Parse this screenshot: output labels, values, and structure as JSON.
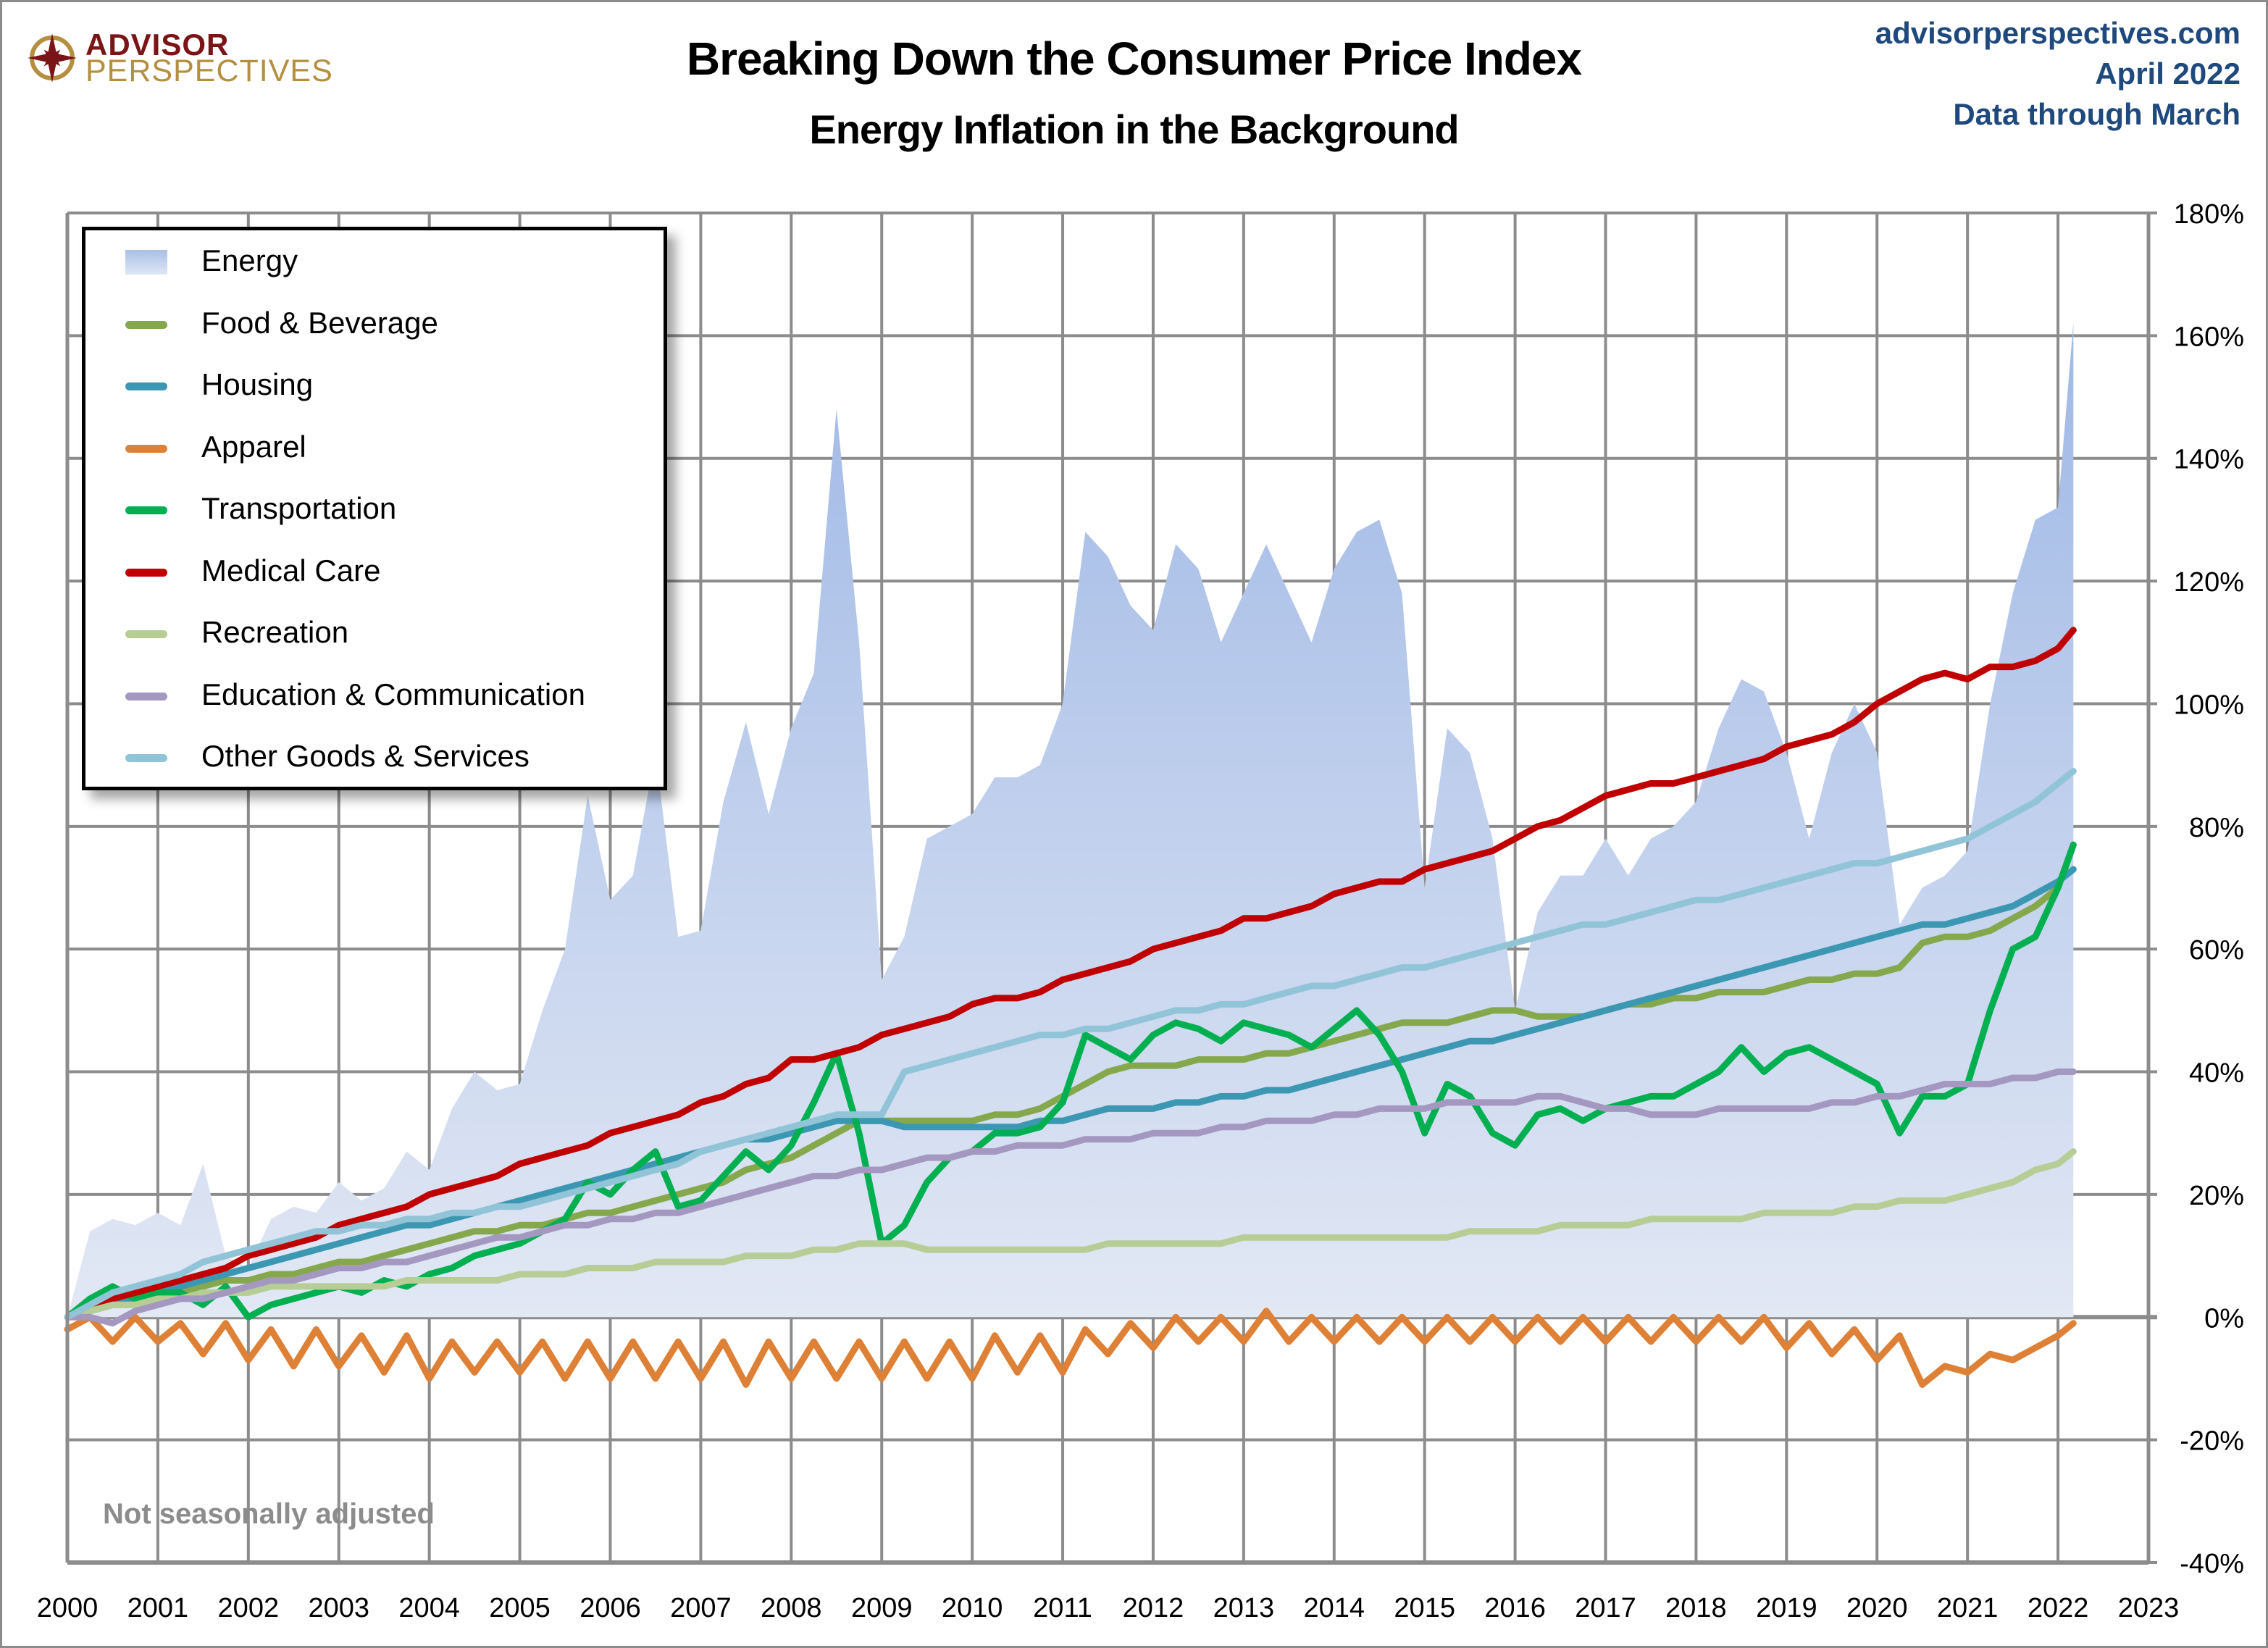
{
  "header": {
    "title": "Breaking Down the Consumer Price Index",
    "subtitle": "Energy Inflation in the Background",
    "source_lines": [
      "advisorperspectives.com",
      "April 2022",
      "Data through March"
    ],
    "logo": {
      "line1": "ADVISOR",
      "line2": "PERSPECTIVES",
      "icon": "compass-star-icon"
    }
  },
  "note": "Not seasonally adjusted",
  "colors": {
    "energy": "#b4c6e8",
    "food": "#86a84c",
    "housing": "#3c98b2",
    "apparel": "#de8137",
    "transportation": "#00b050",
    "medical": "#c00000",
    "recreation": "#b6ce96",
    "education": "#a497c0",
    "other": "#92c4d8",
    "grid": "#8c8c8c",
    "source_text": "#1f497d",
    "brand_red": "#7a1416",
    "brand_gold": "#b38f3f"
  },
  "chart_data": {
    "type": "line",
    "title": "Breaking Down the Consumer Price Index",
    "subtitle": "Energy Inflation in the Background",
    "xlabel": "",
    "ylabel": "",
    "x_unit": "year",
    "xlim": [
      2000,
      2023
    ],
    "ylim": [
      -40,
      180
    ],
    "x_ticks": [
      "2000",
      "2001",
      "2002",
      "2003",
      "2004",
      "2005",
      "2006",
      "2007",
      "2008",
      "2009",
      "2010",
      "2011",
      "2012",
      "2013",
      "2014",
      "2015",
      "2016",
      "2017",
      "2018",
      "2019",
      "2020",
      "2021",
      "2022",
      "2023"
    ],
    "y_ticks": [
      "180%",
      "160%",
      "140%",
      "120%",
      "100%",
      "80%",
      "60%",
      "40%",
      "20%",
      "0%",
      "-20%",
      "-40%"
    ],
    "y_tick_values": [
      180,
      160,
      140,
      120,
      100,
      80,
      60,
      40,
      20,
      0,
      -20,
      -40
    ],
    "y_axis_side": "right",
    "grid": true,
    "legend_position": "top-left",
    "x": [
      2000.0,
      2000.25,
      2000.5,
      2000.75,
      2001.0,
      2001.25,
      2001.5,
      2001.75,
      2002.0,
      2002.25,
      2002.5,
      2002.75,
      2003.0,
      2003.25,
      2003.5,
      2003.75,
      2004.0,
      2004.25,
      2004.5,
      2004.75,
      2005.0,
      2005.25,
      2005.5,
      2005.75,
      2006.0,
      2006.25,
      2006.5,
      2006.75,
      2007.0,
      2007.25,
      2007.5,
      2007.75,
      2008.0,
      2008.25,
      2008.5,
      2008.75,
      2009.0,
      2009.25,
      2009.5,
      2009.75,
      2010.0,
      2010.25,
      2010.5,
      2010.75,
      2011.0,
      2011.25,
      2011.5,
      2011.75,
      2012.0,
      2012.25,
      2012.5,
      2012.75,
      2013.0,
      2013.25,
      2013.5,
      2013.75,
      2014.0,
      2014.25,
      2014.5,
      2014.75,
      2015.0,
      2015.25,
      2015.5,
      2015.75,
      2016.0,
      2016.25,
      2016.5,
      2016.75,
      2017.0,
      2017.25,
      2017.5,
      2017.75,
      2018.0,
      2018.25,
      2018.5,
      2018.75,
      2019.0,
      2019.25,
      2019.5,
      2019.75,
      2020.0,
      2020.25,
      2020.5,
      2020.75,
      2021.0,
      2021.25,
      2021.5,
      2021.75,
      2022.0,
      2022.17
    ],
    "series": [
      {
        "name": "Energy",
        "type": "area",
        "color": "#b4c6e8",
        "values": [
          0,
          14,
          16,
          15,
          17,
          15,
          25,
          10,
          8,
          16,
          18,
          17,
          22,
          19,
          21,
          27,
          24,
          34,
          40,
          37,
          38,
          50,
          60,
          85,
          68,
          72,
          92,
          62,
          63,
          84,
          97,
          82,
          96,
          105,
          148,
          110,
          55,
          62,
          78,
          80,
          82,
          88,
          88,
          90,
          100,
          128,
          124,
          116,
          112,
          126,
          122,
          110,
          118,
          126,
          118,
          110,
          122,
          128,
          130,
          118,
          70,
          96,
          92,
          78,
          50,
          66,
          72,
          72,
          78,
          72,
          78,
          80,
          84,
          96,
          104,
          102,
          92,
          78,
          92,
          100,
          92,
          64,
          70,
          72,
          76,
          100,
          118,
          130,
          132,
          162
        ]
      },
      {
        "name": "Food & Beverage",
        "color": "#86a84c",
        "values": [
          0,
          1,
          2,
          2,
          3,
          4,
          5,
          6,
          6,
          7,
          7,
          8,
          9,
          9,
          10,
          11,
          12,
          13,
          14,
          14,
          15,
          15,
          16,
          17,
          17,
          18,
          19,
          20,
          21,
          22,
          24,
          25,
          26,
          28,
          30,
          32,
          32,
          32,
          32,
          32,
          32,
          33,
          33,
          34,
          36,
          38,
          40,
          41,
          41,
          41,
          42,
          42,
          42,
          43,
          43,
          44,
          45,
          46,
          47,
          48,
          48,
          48,
          49,
          50,
          50,
          49,
          49,
          49,
          50,
          51,
          51,
          52,
          52,
          53,
          53,
          53,
          54,
          55,
          55,
          56,
          56,
          57,
          61,
          62,
          62,
          63,
          65,
          67,
          70,
          77
        ]
      },
      {
        "name": "Housing",
        "color": "#3c98b2",
        "values": [
          0,
          1,
          2,
          3,
          4,
          5,
          6,
          7,
          8,
          9,
          10,
          11,
          12,
          13,
          14,
          15,
          15,
          16,
          17,
          18,
          19,
          20,
          21,
          22,
          23,
          24,
          25,
          26,
          27,
          28,
          29,
          29,
          30,
          31,
          32,
          32,
          32,
          31,
          31,
          31,
          31,
          31,
          31,
          32,
          32,
          33,
          34,
          34,
          34,
          35,
          35,
          36,
          36,
          37,
          37,
          38,
          39,
          40,
          41,
          42,
          43,
          44,
          45,
          45,
          46,
          47,
          48,
          49,
          50,
          51,
          52,
          53,
          54,
          55,
          56,
          57,
          58,
          59,
          60,
          61,
          62,
          63,
          64,
          64,
          65,
          66,
          67,
          69,
          71,
          73
        ]
      },
      {
        "name": "Apparel",
        "color": "#de8137",
        "values": [
          -2,
          0,
          -4,
          0,
          -4,
          -1,
          -6,
          -1,
          -7,
          -2,
          -8,
          -2,
          -8,
          -3,
          -9,
          -3,
          -10,
          -4,
          -9,
          -4,
          -9,
          -4,
          -10,
          -4,
          -10,
          -4,
          -10,
          -4,
          -10,
          -4,
          -11,
          -4,
          -10,
          -4,
          -10,
          -4,
          -10,
          -4,
          -10,
          -4,
          -10,
          -3,
          -9,
          -3,
          -9,
          -2,
          -6,
          -1,
          -5,
          0,
          -4,
          0,
          -4,
          1,
          -4,
          0,
          -4,
          0,
          -4,
          0,
          -4,
          0,
          -4,
          0,
          -4,
          0,
          -4,
          0,
          -4,
          0,
          -4,
          0,
          -4,
          0,
          -4,
          0,
          -5,
          -1,
          -6,
          -2,
          -7,
          -3,
          -11,
          -8,
          -9,
          -6,
          -7,
          -5,
          -3,
          -1
        ]
      },
      {
        "name": "Transportation",
        "color": "#00b050",
        "values": [
          0,
          3,
          5,
          3,
          4,
          4,
          2,
          5,
          0,
          2,
          3,
          4,
          5,
          4,
          6,
          5,
          7,
          8,
          10,
          11,
          12,
          14,
          16,
          22,
          20,
          24,
          27,
          18,
          19,
          23,
          27,
          24,
          28,
          35,
          43,
          30,
          12,
          15,
          22,
          26,
          27,
          30,
          30,
          31,
          35,
          46,
          44,
          42,
          46,
          48,
          47,
          45,
          48,
          47,
          46,
          44,
          47,
          50,
          46,
          40,
          30,
          38,
          36,
          30,
          28,
          33,
          34,
          32,
          34,
          35,
          36,
          36,
          38,
          40,
          44,
          40,
          43,
          44,
          42,
          40,
          38,
          30,
          36,
          36,
          38,
          50,
          60,
          62,
          70,
          77
        ]
      },
      {
        "name": "Medical Care",
        "color": "#c00000",
        "values": [
          0,
          2,
          3,
          4,
          5,
          6,
          7,
          8,
          10,
          11,
          12,
          13,
          15,
          16,
          17,
          18,
          20,
          21,
          22,
          23,
          25,
          26,
          27,
          28,
          30,
          31,
          32,
          33,
          35,
          36,
          38,
          39,
          42,
          42,
          43,
          44,
          46,
          47,
          48,
          49,
          51,
          52,
          52,
          53,
          55,
          56,
          57,
          58,
          60,
          61,
          62,
          63,
          65,
          65,
          66,
          67,
          69,
          70,
          71,
          71,
          73,
          74,
          75,
          76,
          78,
          80,
          81,
          83,
          85,
          86,
          87,
          87,
          88,
          89,
          90,
          91,
          93,
          94,
          95,
          97,
          100,
          102,
          104,
          105,
          104,
          106,
          106,
          107,
          109,
          112
        ]
      },
      {
        "name": "Recreation",
        "color": "#b6ce96",
        "values": [
          0,
          1,
          2,
          2,
          3,
          3,
          4,
          4,
          4,
          5,
          5,
          5,
          5,
          5,
          5,
          6,
          6,
          6,
          6,
          6,
          7,
          7,
          7,
          8,
          8,
          8,
          9,
          9,
          9,
          9,
          10,
          10,
          10,
          11,
          11,
          12,
          12,
          12,
          11,
          11,
          11,
          11,
          11,
          11,
          11,
          11,
          12,
          12,
          12,
          12,
          12,
          12,
          13,
          13,
          13,
          13,
          13,
          13,
          13,
          13,
          13,
          13,
          14,
          14,
          14,
          14,
          15,
          15,
          15,
          15,
          16,
          16,
          16,
          16,
          16,
          17,
          17,
          17,
          17,
          18,
          18,
          19,
          19,
          19,
          20,
          21,
          22,
          24,
          25,
          27
        ]
      },
      {
        "name": "Education & Communication",
        "color": "#a497c0",
        "values": [
          0,
          0,
          -1,
          1,
          2,
          3,
          3,
          4,
          5,
          6,
          6,
          7,
          8,
          8,
          9,
          9,
          10,
          11,
          12,
          13,
          13,
          14,
          15,
          15,
          16,
          16,
          17,
          17,
          18,
          19,
          20,
          21,
          22,
          23,
          23,
          24,
          24,
          25,
          26,
          26,
          27,
          27,
          28,
          28,
          28,
          29,
          29,
          29,
          30,
          30,
          30,
          31,
          31,
          32,
          32,
          32,
          33,
          33,
          34,
          34,
          34,
          35,
          35,
          35,
          35,
          36,
          36,
          35,
          34,
          34,
          33,
          33,
          33,
          34,
          34,
          34,
          34,
          34,
          35,
          35,
          36,
          36,
          37,
          38,
          38,
          38,
          39,
          39,
          40,
          40
        ]
      },
      {
        "name": "Other Goods & Services",
        "color": "#92c4d8",
        "values": [
          0,
          2,
          4,
          5,
          6,
          7,
          9,
          10,
          11,
          12,
          13,
          14,
          14,
          15,
          15,
          16,
          16,
          17,
          17,
          18,
          18,
          19,
          20,
          21,
          22,
          23,
          24,
          25,
          27,
          28,
          29,
          30,
          31,
          32,
          33,
          33,
          33,
          40,
          41,
          42,
          43,
          44,
          45,
          46,
          46,
          47,
          47,
          48,
          49,
          50,
          50,
          51,
          51,
          52,
          53,
          54,
          54,
          55,
          56,
          57,
          57,
          58,
          59,
          60,
          61,
          62,
          63,
          64,
          64,
          65,
          66,
          67,
          68,
          68,
          69,
          70,
          71,
          72,
          73,
          74,
          74,
          75,
          76,
          77,
          78,
          80,
          82,
          84,
          87,
          89
        ]
      }
    ]
  },
  "legend": {
    "items": [
      {
        "label": "Energy",
        "swatch": "area",
        "color": "#b4c6e8"
      },
      {
        "label": "Food & Beverage",
        "swatch": "line",
        "color": "#86a84c"
      },
      {
        "label": "Housing",
        "swatch": "line",
        "color": "#3c98b2"
      },
      {
        "label": "Apparel",
        "swatch": "line",
        "color": "#de8137"
      },
      {
        "label": "Transportation",
        "swatch": "line",
        "color": "#00b050"
      },
      {
        "label": "Medical Care",
        "swatch": "line",
        "color": "#c00000"
      },
      {
        "label": "Recreation",
        "swatch": "line",
        "color": "#b6ce96"
      },
      {
        "label": "Education & Communication",
        "swatch": "line",
        "color": "#a497c0"
      },
      {
        "label": "Other Goods & Services",
        "swatch": "line",
        "color": "#92c4d8"
      }
    ]
  }
}
